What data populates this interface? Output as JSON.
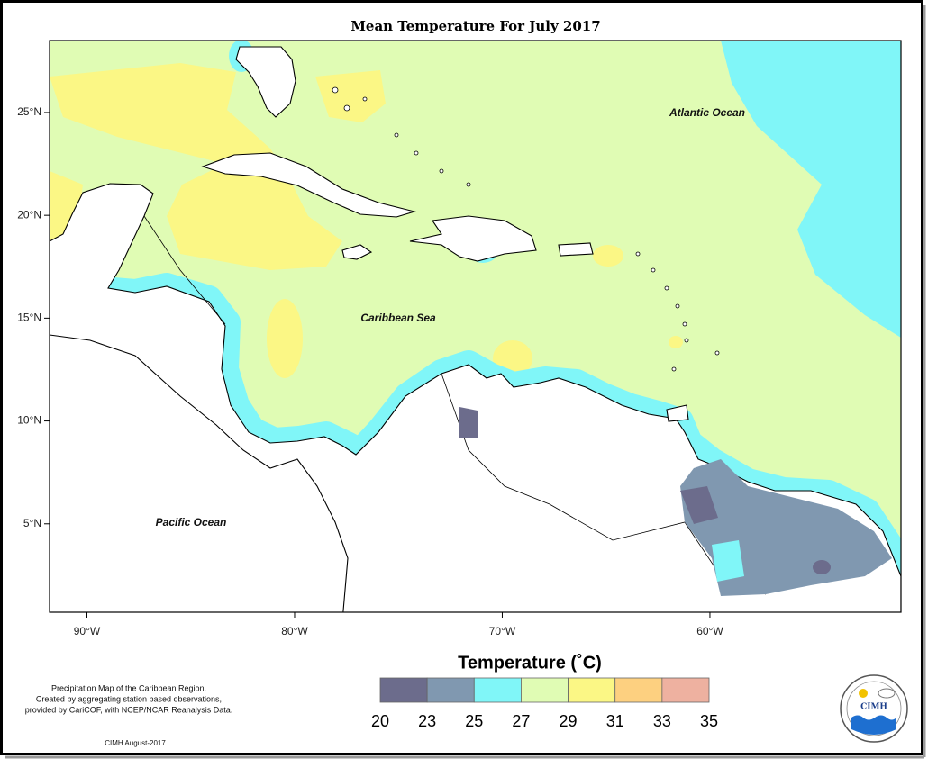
{
  "title": "Mean Temperature For July 2017",
  "map": {
    "xlim": [
      -91.8,
      -50.8
    ],
    "ylim": [
      0.7,
      28.5
    ],
    "xticks": [
      {
        "value": -90,
        "label": "90°W"
      },
      {
        "value": -80,
        "label": "80°W"
      },
      {
        "value": -70,
        "label": "70°W"
      },
      {
        "value": -60,
        "label": "60°W"
      }
    ],
    "yticks": [
      {
        "value": 5,
        "label": "5°N"
      },
      {
        "value": 10,
        "label": "10°N"
      },
      {
        "value": 15,
        "label": "15°N"
      },
      {
        "value": 20,
        "label": "20°N"
      },
      {
        "value": 25,
        "label": "25°N"
      }
    ],
    "ocean_labels": [
      "Atlantic Ocean",
      "Caribbean Sea",
      "Pacific Ocean"
    ]
  },
  "legend": {
    "title": "Temperature (˚C)",
    "breaks": [
      20,
      23,
      25,
      27,
      29,
      31,
      33,
      35
    ],
    "colors": [
      "#6c6c8c",
      "#8098b0",
      "#80f6f8",
      "#e0fcb4",
      "#fbf785",
      "#fdd080",
      "#eeb1a0"
    ]
  },
  "notes": [
    "Precipitation Map of the Caribbean Region.",
    "Created by aggregating station based observations,",
    "provided by CariCOF, with NCEP/NCAR Reanalysis Data."
  ],
  "credit": "CIMH August-2017",
  "logo": {
    "text": "CIMH"
  }
}
